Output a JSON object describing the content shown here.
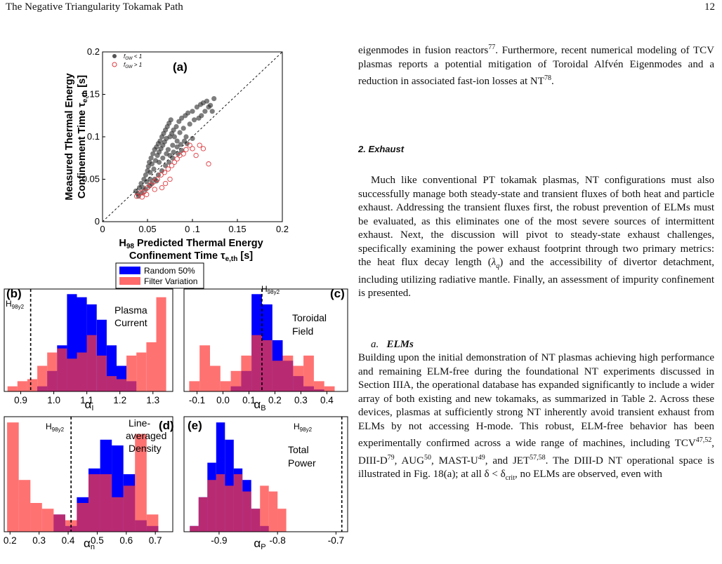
{
  "header": {
    "title": "The Negative Triangularity Tokamak Path",
    "page_number": "12"
  },
  "figure": {
    "panel_a": {
      "label": "(a)",
      "ylabel_line1": "Measured Thermal Energy",
      "ylabel_line2": "Confinement Time τ",
      "ylabel_sub": "e,th",
      "ylabel_unit": " [s]",
      "xlabel_line1_pre": "H",
      "xlabel_line1_sub": "98",
      "xlabel_line1_post": " Predicted Thermal Energy",
      "xlabel_line2": "Confinement Time τ",
      "xlabel_sub": "e,th",
      "xlabel_unit": " [s]",
      "legend": [
        {
          "label": "f",
          "sub": "GW",
          "rest": " < 1",
          "color": "#555555"
        },
        {
          "label": "f",
          "sub": "GW",
          "rest": " > 1",
          "color": "#e0383e"
        }
      ],
      "xticks": [
        "0",
        "0.05",
        "0 .1",
        "0.15",
        "0.2"
      ],
      "yticks": [
        "0",
        "0.05",
        "0.1",
        "0.15",
        "0.2"
      ]
    },
    "histogram_legend": [
      {
        "label": "Random 50%",
        "color": "#0000ff"
      },
      {
        "label": "Filter Variation",
        "color": "#ff6a6a"
      }
    ],
    "panels": [
      {
        "label": "(b)",
        "text1": "Plasma",
        "text2": "Current",
        "h98": "H",
        "h98sub": "98y2",
        "xlabel": "α",
        "xsub": "I",
        "ticks": [
          "0.9",
          "1.0",
          "1.1",
          "1.2",
          "1.3"
        ]
      },
      {
        "label": "(c)",
        "text1": "Toroidal",
        "text2": "Field",
        "h98": "H",
        "h98sub": "98y2",
        "xlabel": "α",
        "xsub": "B",
        "ticks": [
          "-0.1",
          "0.0",
          "0.1",
          "0.2",
          "0.3",
          "0.4"
        ]
      },
      {
        "label": "(d)",
        "text1": "Line-",
        "text2": "averaged",
        "text3": "Density",
        "h98": "H",
        "h98sub": "98y2",
        "xlabel": "α",
        "xsub": "n",
        "ticks": [
          "0.2",
          "0.3",
          "0.4",
          "0.5",
          "0.6",
          "0.7"
        ]
      },
      {
        "label": "(e)",
        "text1": "Total",
        "text2": "Power",
        "h98": "H",
        "h98sub": "98y2",
        "xlabel": "α",
        "xsub": "P",
        "ticks": [
          "-0.9",
          "-0.8",
          "-0.7"
        ]
      }
    ]
  },
  "chart_data": [
    {
      "type": "scatter",
      "title": "(a)",
      "xlabel": "H98 Predicted Thermal Energy Confinement Time τe,th [s]",
      "ylabel": "Measured Thermal Energy Confinement Time τe,th [s]",
      "xlim": [
        0,
        0.2
      ],
      "ylim": [
        0,
        0.2
      ],
      "series": [
        {
          "name": "fGW < 1",
          "color": "#555555",
          "points": [
            [
              0.037,
              0.036
            ],
            [
              0.039,
              0.033
            ],
            [
              0.041,
              0.04
            ],
            [
              0.043,
              0.045
            ],
            [
              0.046,
              0.05
            ],
            [
              0.048,
              0.055
            ],
            [
              0.05,
              0.06
            ],
            [
              0.051,
              0.065
            ],
            [
              0.052,
              0.07
            ],
            [
              0.053,
              0.058
            ],
            [
              0.054,
              0.075
            ],
            [
              0.055,
              0.068
            ],
            [
              0.056,
              0.08
            ],
            [
              0.057,
              0.062
            ],
            [
              0.058,
              0.085
            ],
            [
              0.059,
              0.072
            ],
            [
              0.06,
              0.088
            ],
            [
              0.061,
              0.078
            ],
            [
              0.062,
              0.092
            ],
            [
              0.063,
              0.082
            ],
            [
              0.064,
              0.095
            ],
            [
              0.065,
              0.086
            ],
            [
              0.066,
              0.1
            ],
            [
              0.067,
              0.09
            ],
            [
              0.068,
              0.104
            ],
            [
              0.069,
              0.094
            ],
            [
              0.07,
              0.108
            ],
            [
              0.071,
              0.098
            ],
            [
              0.072,
              0.112
            ],
            [
              0.073,
              0.085
            ],
            [
              0.074,
              0.116
            ],
            [
              0.075,
              0.1
            ],
            [
              0.076,
              0.12
            ],
            [
              0.077,
              0.104
            ],
            [
              0.078,
              0.09
            ],
            [
              0.079,
              0.108
            ],
            [
              0.08,
              0.1
            ],
            [
              0.082,
              0.112
            ],
            [
              0.083,
              0.095
            ],
            [
              0.085,
              0.118
            ],
            [
              0.086,
              0.105
            ],
            [
              0.088,
              0.122
            ],
            [
              0.09,
              0.11
            ],
            [
              0.092,
              0.125
            ],
            [
              0.093,
              0.1
            ],
            [
              0.095,
              0.128
            ],
            [
              0.097,
              0.115
            ],
            [
              0.1,
              0.13
            ],
            [
              0.102,
              0.12
            ],
            [
              0.105,
              0.135
            ],
            [
              0.107,
              0.122
            ],
            [
              0.109,
              0.138
            ],
            [
              0.11,
              0.125
            ],
            [
              0.112,
              0.14
            ],
            [
              0.114,
              0.13
            ],
            [
              0.116,
              0.142
            ],
            [
              0.118,
              0.135
            ],
            [
              0.12,
              0.137
            ],
            [
              0.122,
              0.13
            ],
            [
              0.124,
              0.145
            ],
            [
              0.058,
              0.05
            ],
            [
              0.062,
              0.055
            ],
            [
              0.066,
              0.06
            ],
            [
              0.07,
              0.066
            ],
            [
              0.074,
              0.07
            ],
            [
              0.078,
              0.075
            ],
            [
              0.084,
              0.08
            ],
            [
              0.088,
              0.084
            ],
            [
              0.094,
              0.092
            ],
            [
              0.1,
              0.098
            ],
            [
              0.045,
              0.04
            ],
            [
              0.049,
              0.047
            ],
            [
              0.053,
              0.05
            ],
            [
              0.063,
              0.07
            ],
            [
              0.067,
              0.075
            ],
            [
              0.071,
              0.08
            ],
            [
              0.075,
              0.078
            ],
            [
              0.079,
              0.082
            ],
            [
              0.083,
              0.088
            ],
            [
              0.087,
              0.091
            ],
            [
              0.091,
              0.095
            ],
            [
              0.055,
              0.045
            ],
            [
              0.06,
              0.048
            ],
            [
              0.052,
              0.042
            ],
            [
              0.048,
              0.038
            ],
            [
              0.044,
              0.034
            ],
            [
              0.04,
              0.03
            ]
          ]
        },
        {
          "name": "fGW > 1",
          "color": "#e0383e",
          "points": [
            [
              0.038,
              0.03
            ],
            [
              0.042,
              0.034
            ],
            [
              0.046,
              0.035
            ],
            [
              0.05,
              0.04
            ],
            [
              0.053,
              0.043
            ],
            [
              0.057,
              0.047
            ],
            [
              0.061,
              0.05
            ],
            [
              0.065,
              0.055
            ],
            [
              0.069,
              0.058
            ],
            [
              0.073,
              0.062
            ],
            [
              0.077,
              0.066
            ],
            [
              0.08,
              0.07
            ],
            [
              0.083,
              0.074
            ],
            [
              0.086,
              0.078
            ],
            [
              0.09,
              0.08
            ],
            [
              0.093,
              0.085
            ],
            [
              0.097,
              0.09
            ],
            [
              0.1,
              0.086
            ],
            [
              0.104,
              0.078
            ],
            [
              0.108,
              0.09
            ],
            [
              0.112,
              0.086
            ],
            [
              0.118,
              0.068
            ],
            [
              0.07,
              0.045
            ],
            [
              0.075,
              0.05
            ],
            [
              0.066,
              0.04
            ],
            [
              0.058,
              0.038
            ],
            [
              0.049,
              0.032
            ],
            [
              0.044,
              0.029
            ]
          ]
        }
      ]
    },
    {
      "type": "bar",
      "title": "(b)",
      "xlabel": "αI",
      "xlim": [
        0.85,
        1.36
      ],
      "marker_h98y2": 0.93,
      "bin_edges": [
        0.86,
        0.89,
        0.92,
        0.95,
        0.98,
        1.01,
        1.04,
        1.07,
        1.1,
        1.13,
        1.16,
        1.19,
        1.22,
        1.25,
        1.28,
        1.31,
        1.34
      ],
      "series": [
        {
          "name": "Random 50%",
          "values": [
            0,
            0,
            0,
            0.05,
            0.2,
            0.45,
            0.95,
            0.92,
            0.85,
            0.7,
            0.45,
            0.25,
            0.1,
            0,
            0,
            0
          ]
        },
        {
          "name": "Filter Variation",
          "values": [
            0.05,
            0.1,
            0.12,
            0.25,
            0.38,
            0.42,
            0.32,
            0.38,
            0.55,
            0.35,
            0.15,
            0.12,
            0.35,
            0.38,
            0.48,
            0.92
          ]
        }
      ]
    },
    {
      "type": "bar",
      "title": "(c)",
      "xlabel": "αB",
      "xlim": [
        -0.15,
        0.48
      ],
      "marker_h98y2": 0.15,
      "bin_edges": [
        -0.13,
        -0.09,
        -0.05,
        -0.01,
        0.03,
        0.07,
        0.11,
        0.15,
        0.19,
        0.23,
        0.27,
        0.31,
        0.35,
        0.39,
        0.43
      ],
      "series": [
        {
          "name": "Random 50%",
          "values": [
            0,
            0,
            0,
            0,
            0.05,
            0.2,
            0.95,
            0.85,
            0.5,
            0.3,
            0.15,
            0.05,
            0.02,
            0
          ]
        },
        {
          "name": "Filter Variation",
          "values": [
            0.1,
            0.45,
            0.25,
            0.1,
            0.2,
            0.35,
            0.55,
            0.5,
            0.3,
            0.35,
            0.25,
            0.35,
            0.1,
            0.05
          ]
        }
      ]
    },
    {
      "type": "bar",
      "title": "(d)",
      "xlabel": "αn",
      "xlim": [
        0.18,
        0.76
      ],
      "marker_h98y2": 0.41,
      "bin_edges": [
        0.19,
        0.23,
        0.27,
        0.31,
        0.35,
        0.39,
        0.43,
        0.47,
        0.51,
        0.55,
        0.59,
        0.63,
        0.67,
        0.71
      ],
      "series": [
        {
          "name": "Random 50%",
          "values": [
            0,
            0,
            0,
            0,
            0.15,
            0.05,
            0.3,
            0.55,
            0.8,
            0.75,
            0.5,
            0.1,
            0.05
          ]
        },
        {
          "name": "Filter Variation",
          "values": [
            0.95,
            0.45,
            0.25,
            0.2,
            0.15,
            0.1,
            0.25,
            0.5,
            0.5,
            0.3,
            0.4,
            0.85,
            0.15
          ]
        }
      ]
    },
    {
      "type": "bar",
      "title": "(e)",
      "xlabel": "αP",
      "xlim": [
        -0.96,
        -0.68
      ],
      "marker_h98y2": -0.69,
      "bin_edges": [
        -0.95,
        -0.935,
        -0.92,
        -0.905,
        -0.89,
        -0.875,
        -0.86,
        -0.845,
        -0.83,
        -0.815,
        -0.8,
        -0.785
      ],
      "series": [
        {
          "name": "Random 50%",
          "values": [
            0.05,
            0.3,
            0.6,
            0.95,
            0.8,
            0.55,
            0.45,
            0.2,
            0.05,
            0,
            0
          ]
        },
        {
          "name": "Filter Variation",
          "values": [
            0.05,
            0.3,
            0.45,
            0.5,
            0.4,
            0.5,
            0.35,
            0.2,
            0.4,
            0.35,
            0.2
          ]
        }
      ]
    }
  ],
  "text": {
    "p1_a": "eigenmodes in fusion reactors",
    "p1_a_sup": "77",
    "p1_b": ". Furthermore, recent numerical modeling of TCV plasmas reports a potential mitigation of Toroidal Alfvén Eigenmodes and a reduction in associated fast-ion losses at NT",
    "p1_b_sup": "78",
    "p1_c": ".",
    "section": "2.   Exhaust",
    "p2_a": "Much like conventional PT tokamak plasmas, NT configurations must also successfully manage both steady-state and transient fluxes of both heat and particle exhaust. Addressing the transient fluxes first, the robust prevention of ELMs must be evaluated, as this eliminates one of the most severe sources of intermittent exhaust. Next, the discussion will pivot to steady-state exhaust challenges, specifically examining the power exhaust footprint through two primary metrics: the heat flux decay length (",
    "p2_sym": "λ",
    "p2_sub": "q",
    "p2_b": ") and the accessibility of divertor detachment, including utilizing radiative mantle. Finally, an assessment of impurity confinement is presented.",
    "subsec_a": "a.",
    "subsec_b": "ELMs",
    "p3_a": "Building upon the initial demonstration of NT plasmas achieving high performance and remaining ELM-free during the foundational NT experiments discussed in Section IIIA, the operational database has expanded significantly to include a wider array of both existing and new tokamaks, as summarized in Table 2. Across these devices, plasmas at sufficiently strong NT inherently avoid transient exhaust from ELMs by not accessing H-mode. This robust, ELM-free behavior has been experimentally confirmed across a wide range of machines, including TCV",
    "p3_s1": "47,52",
    "p3_b": ", DIII-D",
    "p3_s2": "79",
    "p3_c": ", AUG",
    "p3_s3": "50",
    "p3_d": ", MAST-U",
    "p3_s4": "49",
    "p3_e": ", and JET",
    "p3_s5": "57,58",
    "p3_f": ". The DIII-D NT operational space is illustrated in Fig. 18(a); at all δ < δ",
    "p3_sub": "crit",
    "p3_g": ", no ELMs are observed, even with"
  }
}
